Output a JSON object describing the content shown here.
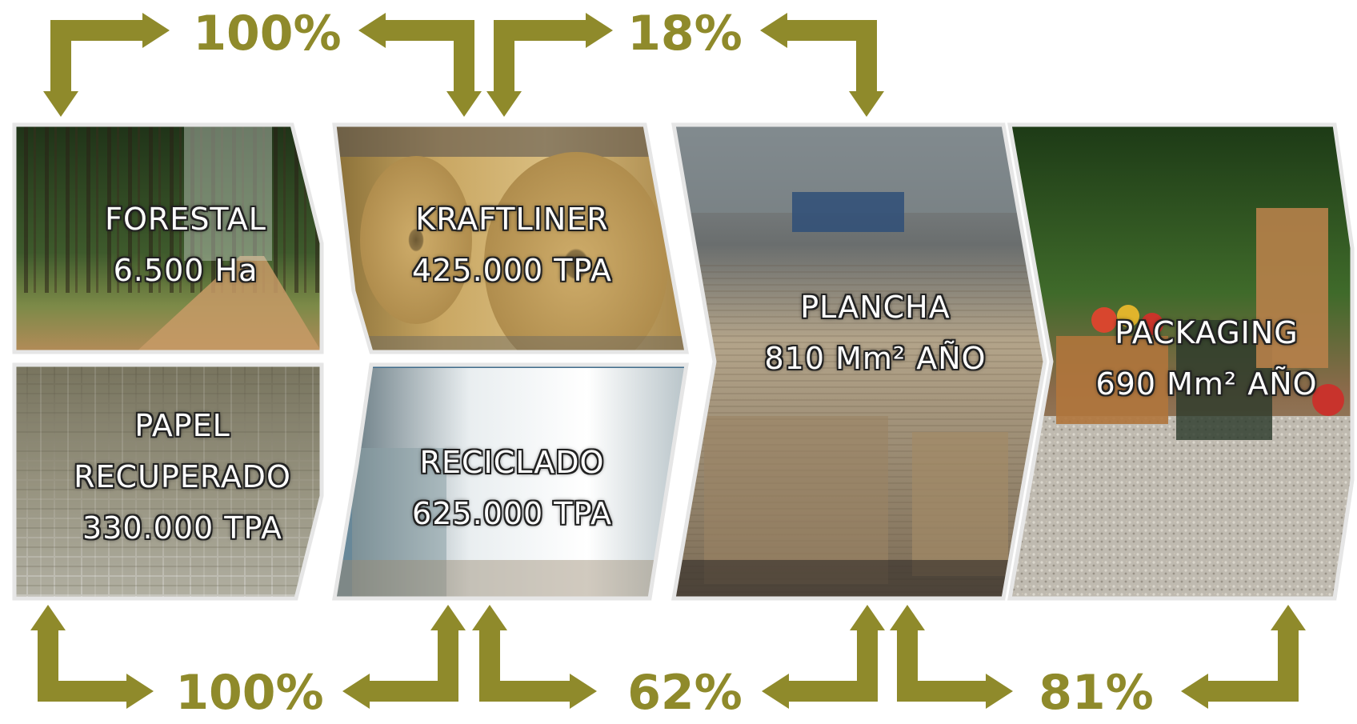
{
  "colors": {
    "accent": "#8f8a2b",
    "panel_border": "#e6e6e6"
  },
  "stages": {
    "forestal": {
      "name": "FORESTAL",
      "value": "6.500 Ha"
    },
    "papel_recuperado": {
      "name_line1": "PAPEL",
      "name_line2": "RECUPERADO",
      "value": "330.000 TPA"
    },
    "kraftliner": {
      "name": "KRAFTLINER",
      "value": "425.000 TPA"
    },
    "reciclado": {
      "name": "RECICLADO",
      "value": "625.000 TPA"
    },
    "plancha": {
      "name": "PLANCHA",
      "value": "810 Mm² AÑO"
    },
    "packaging": {
      "name": "PACKAGING",
      "value": "690 Mm² AÑO"
    }
  },
  "flows": {
    "forestal_to_kraftliner": "100%",
    "kraftliner_to_plancha": "18%",
    "papel_to_reciclado": "100%",
    "reciclado_to_plancha": "62%",
    "plancha_to_packaging": "81%"
  },
  "icons": {
    "arrow": "elbow-arrow-icon",
    "photos": [
      "pine-forest-photo",
      "paper-bales-photo",
      "kraft-rolls-photo",
      "white-paper-roll-photo",
      "corrugated-sheets-photo",
      "fruit-boxes-photo"
    ]
  }
}
